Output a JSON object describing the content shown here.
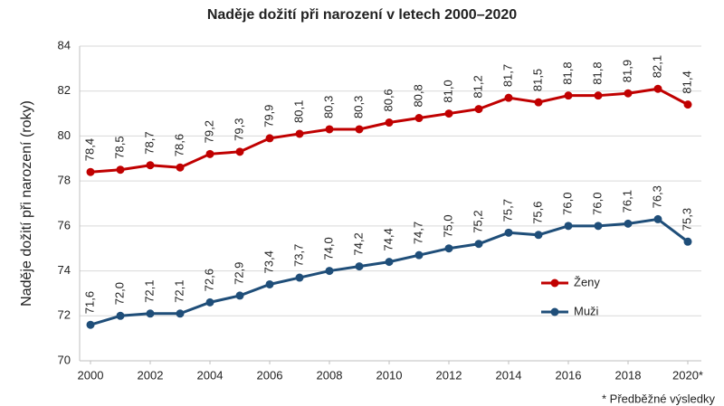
{
  "chart_data": {
    "type": "line",
    "title": "Naděje dožití při narození v letech 2000–2020",
    "y_label": "Naděje dožití při narození (roky)",
    "footnote": "* Předběžné výsledky",
    "x": [
      2000,
      2001,
      2002,
      2003,
      2004,
      2005,
      2006,
      2007,
      2008,
      2009,
      2010,
      2011,
      2012,
      2013,
      2014,
      2015,
      2016,
      2017,
      2018,
      2019,
      2020
    ],
    "series": [
      {
        "name": "Ženy",
        "color": "#c00000",
        "values": [
          78.4,
          78.5,
          78.7,
          78.6,
          79.2,
          79.3,
          79.9,
          80.1,
          80.3,
          80.3,
          80.6,
          80.8,
          81.0,
          81.2,
          81.7,
          81.5,
          81.8,
          81.8,
          81.9,
          82.1,
          81.4
        ],
        "value_labels": [
          "78,4",
          "78,5",
          "78,7",
          "78,6",
          "79,2",
          "79,3",
          "79,9",
          "80,1",
          "80,3",
          "80,3",
          "80,6",
          "80,8",
          "81,0",
          "81,2",
          "81,7",
          "81,5",
          "81,8",
          "81,8",
          "81,9",
          "82,1",
          "81,4"
        ]
      },
      {
        "name": "Muži",
        "color": "#1f4e79",
        "values": [
          71.6,
          72.0,
          72.1,
          72.1,
          72.6,
          72.9,
          73.4,
          73.7,
          74.0,
          74.2,
          74.4,
          74.7,
          75.0,
          75.2,
          75.7,
          75.6,
          76.0,
          76.0,
          76.1,
          76.3,
          75.3
        ],
        "value_labels": [
          "71,6",
          "72,0",
          "72,1",
          "72,1",
          "72,6",
          "72,9",
          "73,4",
          "73,7",
          "74,0",
          "74,2",
          "74,4",
          "74,7",
          "75,0",
          "75,2",
          "75,7",
          "75,6",
          "76,0",
          "76,0",
          "76,1",
          "76,3",
          "75,3"
        ]
      }
    ],
    "xlim": [
      2000,
      2020
    ],
    "xticks": [
      2000,
      2002,
      2004,
      2006,
      2008,
      2010,
      2012,
      2014,
      2016,
      2018,
      {
        "value": 2020,
        "label": "2020*"
      }
    ],
    "ylim": [
      70,
      84
    ],
    "yticks": [
      70,
      72,
      74,
      76,
      78,
      80,
      82,
      84
    ],
    "grid": true
  }
}
